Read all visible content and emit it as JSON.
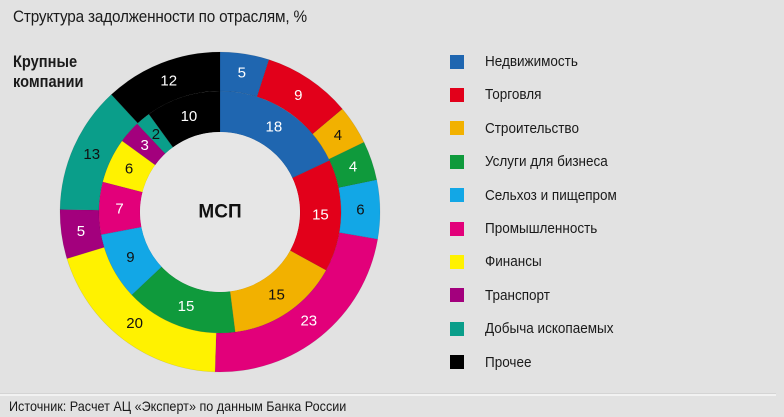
{
  "title": "Структура задолженности по отраслям, %",
  "outer_ring_label": [
    "Крупные",
    "компании"
  ],
  "inner_ring_label": "МСП",
  "source": "Источник: Расчет АЦ «Эксперт» по данным Банка России",
  "categories": [
    {
      "name": "Недвижимость",
      "color": "#1f66b0"
    },
    {
      "name": "Торговля",
      "color": "#e2001a"
    },
    {
      "name": "Строительство",
      "color": "#f2b100"
    },
    {
      "name": "Услуги для бизнеса",
      "color": "#0f9a3c"
    },
    {
      "name": "Сельхоз и пищепром",
      "color": "#12a7e6"
    },
    {
      "name": "Промышленность",
      "color": "#e2007a"
    },
    {
      "name": "Финансы",
      "color": "#fff200"
    },
    {
      "name": "Транспорт",
      "color": "#a3007d"
    },
    {
      "name": "Добыча ископаемых",
      "color": "#0a9e8a"
    },
    {
      "name": "Прочее",
      "color": "#000000"
    }
  ],
  "chart_data": {
    "type": "pie",
    "subtype": "double-donut",
    "title": "Структура задолженности по отраслям, %",
    "categories": [
      "Недвижимость",
      "Торговля",
      "Строительство",
      "Услуги для бизнеса",
      "Сельхоз и пищепром",
      "Промышленность",
      "Финансы",
      "Транспорт",
      "Добыча ископаемых",
      "Прочее"
    ],
    "series": [
      {
        "name": "Крупные компании",
        "ring": "outer",
        "values": [
          5,
          9,
          4,
          4,
          6,
          23,
          20,
          5,
          13,
          12
        ]
      },
      {
        "name": "МСП",
        "ring": "inner",
        "values": [
          18,
          15,
          15,
          15,
          9,
          7,
          6,
          3,
          2,
          10
        ]
      }
    ],
    "label_colors": {
      "outer": [
        "#ffffff",
        "#ffffff",
        "#111111",
        "#ffffff",
        "#111111",
        "#ffffff",
        "#111111",
        "#ffffff",
        "#111111",
        "#ffffff"
      ],
      "inner": [
        "#ffffff",
        "#ffffff",
        "#111111",
        "#ffffff",
        "#111111",
        "#ffffff",
        "#111111",
        "#ffffff",
        "#111111",
        "#ffffff"
      ]
    },
    "unit": "%",
    "legend_position": "right",
    "source": "Источник: Расчет АЦ «Эксперт» по данным Банка России"
  }
}
